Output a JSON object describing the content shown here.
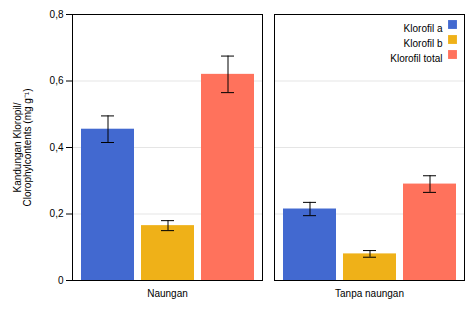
{
  "chart_data": {
    "type": "bar",
    "ylabel": "Kandungan Kloropil/\nClorophylcontents (mg g⁻¹)",
    "categories": [
      "Naungan",
      "Tanpa naungan"
    ],
    "series": [
      {
        "name": "Klorofil a",
        "values": [
          0.455,
          0.215
        ],
        "errors": [
          0.04,
          0.02
        ]
      },
      {
        "name": "Klorofil b",
        "values": [
          0.165,
          0.08
        ],
        "errors": [
          0.015,
          0.01
        ]
      },
      {
        "name": "Klorofil total",
        "values": [
          0.62,
          0.29
        ],
        "errors": [
          0.055,
          0.025
        ]
      }
    ],
    "ylim": [
      0,
      0.8
    ],
    "yticks": [
      0,
      {
        "value": 0.2,
        "label": "0,2"
      },
      {
        "value": 0.4,
        "label": "0,4"
      },
      {
        "value": 0.6,
        "label": "0,6"
      },
      {
        "value": 0.8,
        "label": "0,8"
      }
    ],
    "grid": true,
    "legend": "upper right"
  }
}
